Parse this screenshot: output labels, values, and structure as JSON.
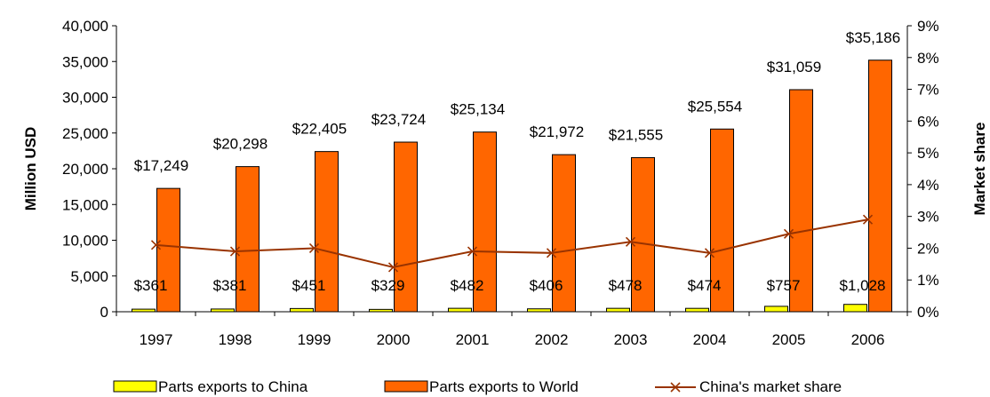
{
  "chart_data": {
    "type": "bar",
    "categories": [
      "1997",
      "1998",
      "1999",
      "2000",
      "2001",
      "2002",
      "2003",
      "2004",
      "2005",
      "2006"
    ],
    "series": [
      {
        "name": "Parts exports to China",
        "type": "bar",
        "axis": "left",
        "color": "#ffff00",
        "values": [
          361,
          381,
          451,
          329,
          482,
          406,
          478,
          474,
          757,
          1028
        ],
        "labels": [
          "$361",
          "$381",
          "$451",
          "$329",
          "$482",
          "$406",
          "$478",
          "$474",
          "$757",
          "$1,028"
        ]
      },
      {
        "name": "Parts exports to World",
        "type": "bar",
        "axis": "right-bar",
        "color": "#ff6600",
        "values": [
          17249,
          20298,
          22405,
          23724,
          25134,
          21972,
          21555,
          25554,
          31059,
          35186
        ],
        "labels": [
          "$17,249",
          "$20,298",
          "$22,405",
          "$23,724",
          "$25,134",
          "$21,972",
          "$21,555",
          "$25,554",
          "$31,059",
          "$35,186"
        ]
      },
      {
        "name": "China's market share",
        "type": "line",
        "axis": "right",
        "color": "#993300",
        "values": [
          2.1,
          1.9,
          2.0,
          1.4,
          1.9,
          1.85,
          2.2,
          1.85,
          2.45,
          2.9
        ]
      }
    ],
    "ylabel": "Million USD",
    "y2label": "Market share",
    "ylim": [
      0,
      40000
    ],
    "y2lim": [
      0,
      9
    ],
    "yticks": [
      "0",
      "5,000",
      "10,000",
      "15,000",
      "20,000",
      "25,000",
      "30,000",
      "35,000",
      "40,000"
    ],
    "y2ticks": [
      "0%",
      "1%",
      "2%",
      "3%",
      "4%",
      "5%",
      "6%",
      "7%",
      "8%",
      "9%"
    ],
    "legend": "bottom",
    "grid": false
  }
}
